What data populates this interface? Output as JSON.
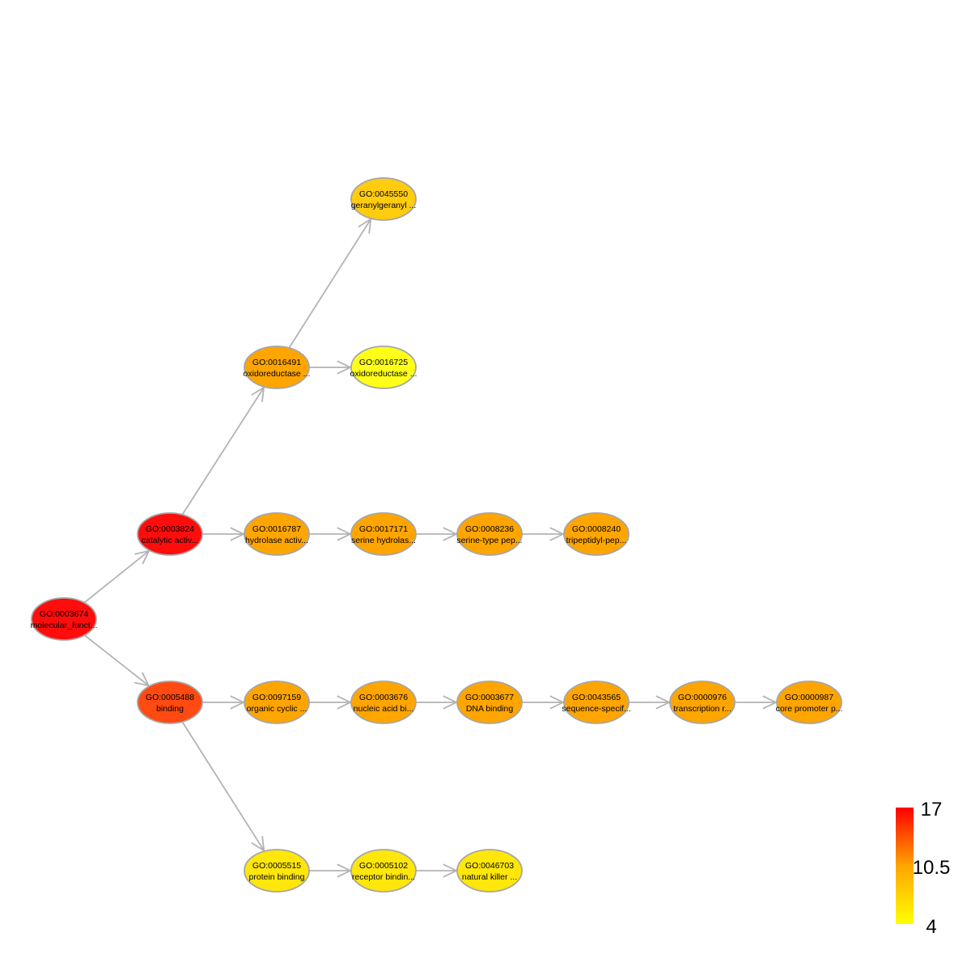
{
  "nodes": [
    {
      "id": "GO:0003674",
      "label": "molecular_funct...",
      "color": "#ff0d0d"
    },
    {
      "id": "GO:0003824",
      "label": "catalytic activ...",
      "color": "#ff0d0d"
    },
    {
      "id": "GO:0005488",
      "label": "binding",
      "color": "#ff4a12"
    },
    {
      "id": "GO:0016491",
      "label": "oxidoreductase ...",
      "color": "#ffa500"
    },
    {
      "id": "GO:0016787",
      "label": "hydrolase activ...",
      "color": "#ffa500"
    },
    {
      "id": "GO:0097159",
      "label": "organic cyclic ...",
      "color": "#ffa500"
    },
    {
      "id": "GO:0005515",
      "label": "protein binding",
      "color": "#ffe60b"
    },
    {
      "id": "GO:0045550",
      "label": "geranylgeranyl ...",
      "color": "#ffcc10"
    },
    {
      "id": "GO:0016725",
      "label": "oxidoreductase ...",
      "color": "#ffff1a"
    },
    {
      "id": "GO:0017171",
      "label": "serine hydrolas...",
      "color": "#ffa500"
    },
    {
      "id": "GO:0008236",
      "label": "serine-type pep...",
      "color": "#ffa500"
    },
    {
      "id": "GO:0008240",
      "label": "tripeptidyl-pep...",
      "color": "#ffa500"
    },
    {
      "id": "GO:0003676",
      "label": "nucleic acid bi...",
      "color": "#ffa500"
    },
    {
      "id": "GO:0003677",
      "label": "DNA binding",
      "color": "#ffa500"
    },
    {
      "id": "GO:0043565",
      "label": "sequence-specif...",
      "color": "#ffa500"
    },
    {
      "id": "GO:0000976",
      "label": "transcription r...",
      "color": "#ffa500"
    },
    {
      "id": "GO:0000987",
      "label": "core promoter p...",
      "color": "#ffa500"
    },
    {
      "id": "GO:0005102",
      "label": "receptor bindin...",
      "color": "#ffe60b"
    },
    {
      "id": "GO:0046703",
      "label": "natural killer ...",
      "color": "#ffe60b"
    }
  ],
  "edges": [
    [
      "GO:0003674",
      "GO:0003824"
    ],
    [
      "GO:0003674",
      "GO:0005488"
    ],
    [
      "GO:0003824",
      "GO:0016491"
    ],
    [
      "GO:0003824",
      "GO:0016787"
    ],
    [
      "GO:0005488",
      "GO:0097159"
    ],
    [
      "GO:0005488",
      "GO:0005515"
    ],
    [
      "GO:0016491",
      "GO:0045550"
    ],
    [
      "GO:0016491",
      "GO:0016725"
    ],
    [
      "GO:0016787",
      "GO:0017171"
    ],
    [
      "GO:0017171",
      "GO:0008236"
    ],
    [
      "GO:0008236",
      "GO:0008240"
    ],
    [
      "GO:0097159",
      "GO:0003676"
    ],
    [
      "GO:0003676",
      "GO:0003677"
    ],
    [
      "GO:0003677",
      "GO:0043565"
    ],
    [
      "GO:0043565",
      "GO:0000976"
    ],
    [
      "GO:0000976",
      "GO:0000987"
    ],
    [
      "GO:0005515",
      "GO:0005102"
    ],
    [
      "GO:0005102",
      "GO:0046703"
    ]
  ],
  "legend": {
    "max_label": "17",
    "mid_label": "10.5",
    "min_label": "4",
    "color_high": "#ff0000",
    "color_mid": "#ffa500",
    "color_low": "#ffff00"
  },
  "style": {
    "edge_color": "#b3b3b3",
    "node_border": "#a6a6a6"
  }
}
